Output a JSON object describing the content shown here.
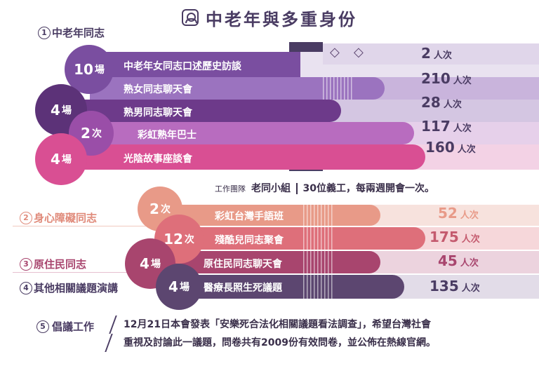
{
  "title": "中老年與多重身份",
  "sections": {
    "s1": {
      "num": "1",
      "label": "中老年同志",
      "color": "#4a3c63"
    },
    "s2": {
      "num": "2",
      "label": "身心障礙同志",
      "color": "#e08a7a"
    },
    "s3": {
      "num": "3",
      "label": "原住民同志",
      "color": "#a8456e"
    },
    "s4": {
      "num": "4",
      "label": "其他相關議題演講",
      "color": "#4a3c63"
    },
    "s5": {
      "num": "5",
      "label": "倡議工作",
      "color": "#4a3c63"
    }
  },
  "events": [
    {
      "label": "中老年女同志口述歷史訪談",
      "count": "2",
      "unit": "人次",
      "badge_num": "10",
      "badge_unit": "場",
      "color": "#7a4ea0",
      "value": 2
    },
    {
      "label": "熟女同志聊天會",
      "count": "210",
      "unit": "人次",
      "badge_num": "",
      "badge_unit": "",
      "color": "#8b5fb0",
      "value": 210
    },
    {
      "label": "熟男同志聊天會",
      "count": "28",
      "unit": "人次",
      "badge_num": "4",
      "badge_unit": "場",
      "color": "#6d3a8a",
      "value": 28
    },
    {
      "label": "彩虹熟年巴士",
      "count": "117",
      "unit": "人次",
      "badge_num": "2",
      "badge_unit": "次",
      "color": "#a455a8",
      "value": 117
    },
    {
      "label": "光陰故事座談會",
      "count": "160",
      "unit": "人次",
      "badge_num": "4",
      "badge_unit": "場",
      "color": "#d94f93",
      "value": 160
    },
    {
      "label": "彩虹台灣手語班",
      "count": "52",
      "unit": "人次",
      "badge_num": "2",
      "badge_unit": "次",
      "color": "#e89a88",
      "value": 52
    },
    {
      "label": "殘酷兒同志聚會",
      "count": "175",
      "unit": "人次",
      "badge_num": "12",
      "badge_unit": "次",
      "color": "#de6f7a",
      "value": 175
    },
    {
      "label": "原住民同志聊天會",
      "count": "45",
      "unit": "人次",
      "badge_num": "4",
      "badge_unit": "場",
      "color": "#a8456e",
      "value": 45
    },
    {
      "label": "醫療長照生死議題",
      "count": "135",
      "unit": "人次",
      "badge_num": "4",
      "badge_unit": "場",
      "color": "#5c4670",
      "value": 135
    }
  ],
  "team": {
    "prefix": "工作團隊",
    "name": "老同小組",
    "detail": "30位義工，每兩週開會一次。"
  },
  "advocacy": {
    "line1": "12月21日本會發表「安樂死合法化相關議題看法調查」，希望台灣社會",
    "line2": "重視及討論此一議題，問卷共有2009份有效問卷，並公佈在熱線官網。"
  },
  "icons": {
    "title_icon": "person-badge-icon",
    "diamond": "diamond-icon"
  }
}
